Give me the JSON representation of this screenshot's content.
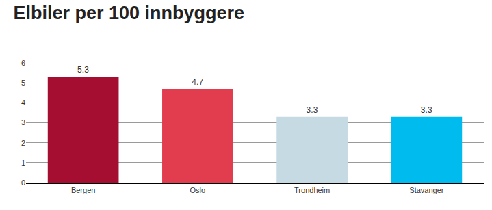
{
  "chart_data": {
    "type": "bar",
    "title": "Elbiler per 100 innbyggere",
    "categories": [
      "Bergen",
      "Oslo",
      "Trondheim",
      "Stavanger"
    ],
    "values": [
      5.3,
      4.7,
      3.3,
      3.3
    ],
    "colors": [
      "#a50e30",
      "#e23d4e",
      "#c5dae3",
      "#00bbee"
    ],
    "ylim": [
      0,
      6
    ],
    "yticks": [
      0,
      1,
      2,
      3,
      4,
      5,
      6
    ],
    "grid": true,
    "data_labels": true
  }
}
